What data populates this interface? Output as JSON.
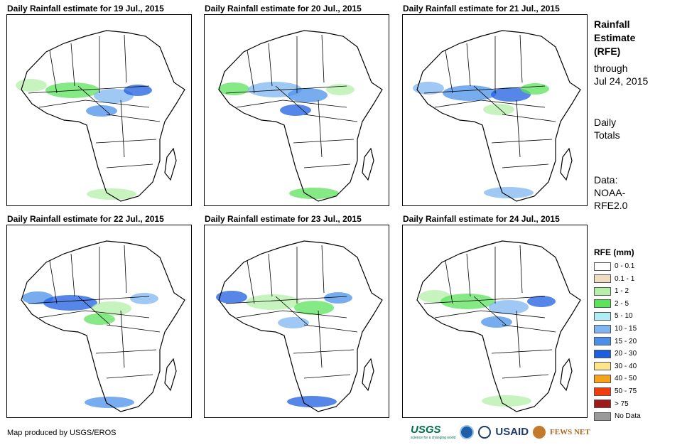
{
  "panels": [
    {
      "title": "Daily Rainfall estimate for 19 Jul., 2015"
    },
    {
      "title": "Daily Rainfall estimate for 20 Jul., 2015"
    },
    {
      "title": "Daily Rainfall estimate for 21 Jul., 2015"
    },
    {
      "title": "Daily Rainfall estimate for 22 Jul., 2015"
    },
    {
      "title": "Daily Rainfall estimate for 23 Jul., 2015"
    },
    {
      "title": "Daily Rainfall estimate for 24 Jul., 2015"
    }
  ],
  "sidebar": {
    "title_line1": "Rainfall",
    "title_line2": "Estimate",
    "title_line3": "(RFE)",
    "through_line1": "through",
    "through_line2": "Jul 24, 2015",
    "totals_line1": "Daily",
    "totals_line2": "Totals",
    "source_line1": "Data:",
    "source_line2": "NOAA-",
    "source_line3": "RFE2.0"
  },
  "legend": {
    "title": "RFE (mm)",
    "items": [
      {
        "label": "0 - 0.1",
        "color": "#ffffff"
      },
      {
        "label": "0.1 - 1",
        "color": "#f1dcc0"
      },
      {
        "label": "1 - 2",
        "color": "#b4f0a8"
      },
      {
        "label": "2 - 5",
        "color": "#5ce35c"
      },
      {
        "label": "5 - 10",
        "color": "#b0ecf4"
      },
      {
        "label": "10 - 15",
        "color": "#7fb6f0"
      },
      {
        "label": "15 - 20",
        "color": "#4a90ea"
      },
      {
        "label": "20 - 30",
        "color": "#1c5ee0"
      },
      {
        "label": "30 - 40",
        "color": "#fce58a"
      },
      {
        "label": "40 - 50",
        "color": "#f7a21c"
      },
      {
        "label": "50 - 75",
        "color": "#f23c0c"
      },
      {
        "label": "> 75",
        "color": "#a01a1a"
      },
      {
        "label": "No Data",
        "color": "#9a9a9a"
      }
    ]
  },
  "footer": {
    "credit": "Map produced by USGS/EROS",
    "logo_usgs": "USGS",
    "logo_usgs_tagline": "science for a changing world",
    "logo_usaid": "USAID",
    "logo_fews": "FEWS NET"
  }
}
